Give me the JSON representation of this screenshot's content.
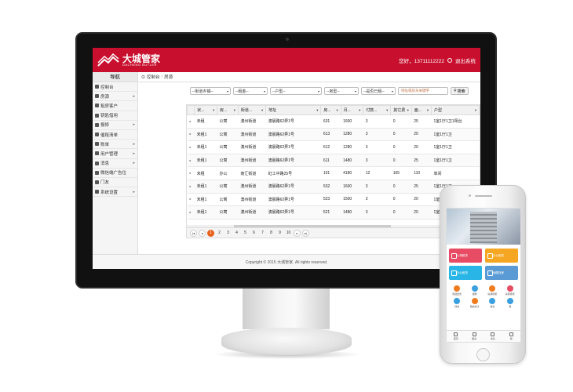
{
  "header": {
    "logo_cn": "大城管家",
    "logo_en": "DACHENG BUTLER",
    "greeting": "您好，13711112222",
    "logout": "退出系统"
  },
  "sidebar": {
    "title": "导航",
    "items": [
      {
        "label": "控制台",
        "arrow": ""
      },
      {
        "label": "房源",
        "arrow": "▸"
      },
      {
        "label": "租房客户",
        "arrow": ""
      },
      {
        "label": "钥匙借用",
        "arrow": ""
      },
      {
        "label": "报修",
        "arrow": "▸"
      },
      {
        "label": "催租清单",
        "arrow": ""
      },
      {
        "label": "账单",
        "arrow": "▸"
      },
      {
        "label": "用户管理",
        "arrow": "▸"
      },
      {
        "label": "消息",
        "arrow": "▸"
      },
      {
        "label": "微信端广告位",
        "arrow": ""
      },
      {
        "label": "门友",
        "arrow": ""
      },
      {
        "label": "系统设置",
        "arrow": "▸"
      }
    ]
  },
  "breadcrumb": {
    "home": "控制台",
    "sep": "/",
    "current": "房源"
  },
  "filters": {
    "street": "--街道乡镇--",
    "rent": "--租金--",
    "layout": "--户型--",
    "type": "--房型--",
    "rented": "--是否已租--",
    "search_placeholder": "地址或房东关键字",
    "search_label": "搜索"
  },
  "table": {
    "columns": [
      "状...",
      "房...",
      "街道...",
      "地址",
      "房...",
      "月...",
      "付款...",
      "其它费",
      "面...",
      "户型"
    ],
    "rows": [
      [
        "未租",
        "公寓",
        "澳州街道",
        "澳晨路62弄1号",
        "631",
        "1600",
        "3",
        "0",
        "25",
        "1室1厅1卫1阳台"
      ],
      [
        "未租1",
        "公寓",
        "澳州街道",
        "澳晨路62弄1号",
        "613",
        "1280",
        "3",
        "0",
        "20",
        "1室1厅1卫"
      ],
      [
        "未租1",
        "公寓",
        "澳州街道",
        "澳晨路62弄1号",
        "612",
        "1280",
        "3",
        "0",
        "20",
        "1室1厅1卫"
      ],
      [
        "未租1",
        "公寓",
        "澳州街道",
        "澳晨路62弄1号",
        "611",
        "1480",
        "3",
        "0",
        "25",
        "1室1厅1卫"
      ],
      [
        "未租",
        "办公",
        "南汇街道",
        "虹工中路25号",
        "101",
        "4180",
        "12",
        "165",
        "110",
        "单间"
      ],
      [
        "未租1",
        "公寓",
        "澳州街道",
        "澳晨路62弄1号",
        "532",
        "1600",
        "3",
        "0",
        "25",
        "1室1厅1卫"
      ],
      [
        "未租1",
        "公寓",
        "澳州街道",
        "澳晨路62弄1号",
        "523",
        "1500",
        "3",
        "0",
        "20",
        "1室1厅1卫"
      ],
      [
        "未租1",
        "公寓",
        "澳州街道",
        "澳晨路62弄1号",
        "521",
        "1480",
        "3",
        "0",
        "20",
        "1室1厅1卫"
      ]
    ]
  },
  "pager": {
    "pages": [
      "1",
      "2",
      "3",
      "4",
      "5",
      "6",
      "7",
      "8",
      "9",
      "10"
    ],
    "current": "1",
    "records": "显示条"
  },
  "footer": {
    "text": "Copyright © 2015 大城管家. All rights reserved."
  },
  "phone": {
    "tiles": [
      {
        "label": "公寓租赁",
        "color": "#e84c64"
      },
      {
        "label": "办公租赁",
        "color": "#f5a623"
      },
      {
        "label": "办公租赁",
        "color": "#29b6e6"
      },
      {
        "label": "地图找房",
        "color": "#5b9bd5"
      }
    ],
    "icons": [
      {
        "label": "筛选出售",
        "color": "#f07c20"
      },
      {
        "label": "报修",
        "color": "#3aa0e0"
      },
      {
        "label": "房源搜索",
        "color": "#f07c20"
      },
      {
        "label": "房源搜索",
        "color": "#e84c64"
      },
      {
        "label": "找房",
        "color": "#3aa0e0"
      },
      {
        "label": "我的房子",
        "color": "#f07c20"
      },
      {
        "label": "消息",
        "color": "#3aa0e0"
      },
      {
        "label": "我",
        "color": "#3aa0e0"
      }
    ],
    "tabs": [
      "首页",
      "租房",
      "消息",
      "我"
    ]
  },
  "colors": {
    "brand": "#c8102e",
    "pager_current": "#e8601c"
  }
}
